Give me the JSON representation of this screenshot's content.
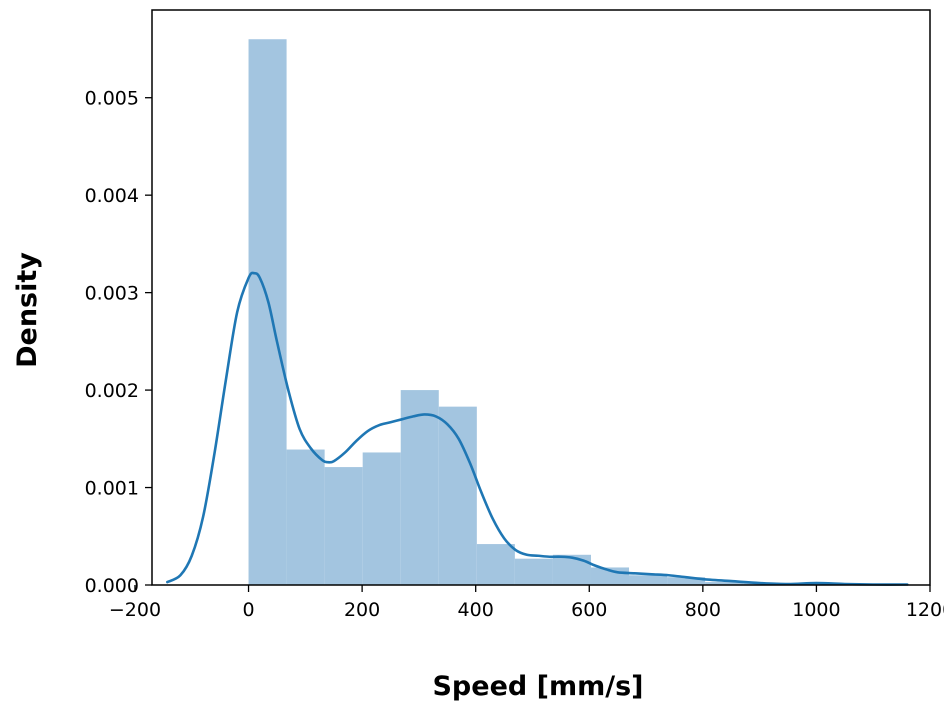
{
  "chart_data": {
    "type": "histogram",
    "title": "",
    "xlabel": "Speed [mm/s]",
    "ylabel": "Density",
    "xlim": [
      -170,
      1200
    ],
    "ylim": [
      0,
      0.0059
    ],
    "grid": false,
    "legend": "none",
    "x_ticks": [
      -200,
      0,
      200,
      400,
      600,
      800,
      1000,
      1200
    ],
    "x_tick_labels": [
      "−200",
      "0",
      "200",
      "400",
      "600",
      "800",
      "1000",
      "1200"
    ],
    "y_ticks": [
      0,
      0.001,
      0.002,
      0.003,
      0.004,
      0.005
    ],
    "y_tick_labels": [
      "0.000",
      "0.001",
      "0.002",
      "0.003",
      "0.004",
      "0.005"
    ],
    "histogram_color": "#a3c5e0",
    "kde_color": "#1f77b4",
    "bins": [
      {
        "x0": 0,
        "x1": 67,
        "density": 0.0056
      },
      {
        "x0": 67,
        "x1": 134,
        "density": 0.00139
      },
      {
        "x0": 134,
        "x1": 201,
        "density": 0.00121
      },
      {
        "x0": 201,
        "x1": 268,
        "density": 0.00136
      },
      {
        "x0": 268,
        "x1": 335,
        "density": 0.002
      },
      {
        "x0": 335,
        "x1": 402,
        "density": 0.00183
      },
      {
        "x0": 402,
        "x1": 469,
        "density": 0.00042
      },
      {
        "x0": 469,
        "x1": 536,
        "density": 0.00027
      },
      {
        "x0": 536,
        "x1": 603,
        "density": 0.00031
      },
      {
        "x0": 603,
        "x1": 670,
        "density": 0.00018
      },
      {
        "x0": 670,
        "x1": 737,
        "density": 0.0001
      },
      {
        "x0": 737,
        "x1": 804,
        "density": 8e-05
      },
      {
        "x0": 804,
        "x1": 871,
        "density": 3e-05
      },
      {
        "x0": 871,
        "x1": 938,
        "density": 2e-05
      },
      {
        "x0": 938,
        "x1": 1005,
        "density": 1e-05
      },
      {
        "x0": 1005,
        "x1": 1072,
        "density": 2e-05
      },
      {
        "x0": 1072,
        "x1": 1139,
        "density": 1e-05
      }
    ],
    "kde": {
      "x": [
        -143,
        -120,
        -100,
        -80,
        -60,
        -40,
        -20,
        0,
        10,
        20,
        35,
        50,
        70,
        90,
        110,
        130,
        140,
        150,
        170,
        190,
        210,
        230,
        250,
        270,
        290,
        310,
        330,
        350,
        370,
        390,
        410,
        430,
        450,
        470,
        490,
        510,
        530,
        550,
        570,
        590,
        610,
        630,
        650,
        680,
        710,
        740,
        770,
        800,
        850,
        900,
        950,
        1000,
        1050,
        1100,
        1160
      ],
      "y": [
        3e-05,
        0.0001,
        0.0003,
        0.0007,
        0.00135,
        0.0021,
        0.0028,
        0.00315,
        0.0032,
        0.00315,
        0.0029,
        0.0025,
        0.002,
        0.0016,
        0.0014,
        0.00128,
        0.00126,
        0.00127,
        0.00136,
        0.00148,
        0.00158,
        0.00164,
        0.00167,
        0.0017,
        0.00173,
        0.00175,
        0.00173,
        0.00165,
        0.0015,
        0.00125,
        0.00095,
        0.00068,
        0.00048,
        0.00036,
        0.00031,
        0.0003,
        0.00029,
        0.00029,
        0.00028,
        0.00025,
        0.0002,
        0.00016,
        0.00013,
        0.00012,
        0.00011,
        0.0001,
        8e-05,
        6e-05,
        4e-05,
        2e-05,
        1e-05,
        2e-05,
        1e-05,
        5e-06,
        5e-06
      ]
    }
  }
}
